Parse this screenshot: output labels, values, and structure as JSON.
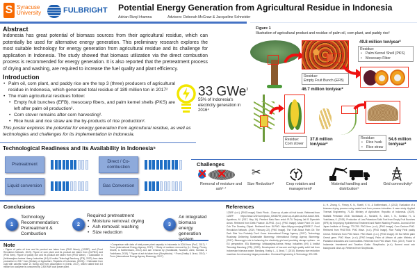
{
  "header": {
    "syracuse": "Syracuse University",
    "syracuse_mark": "S",
    "fulbright": "FULBRIGHT",
    "title": "Potential Energy Generation from Agricultural Residue in Indonesia",
    "author": "Adrian Rizqi Irhamna",
    "advisors": "Advisors: Deborah McGraw & Jacqueline Schneider"
  },
  "abstract": {
    "heading": "Abstract",
    "text": "Indonesia has great potential of biomass sources from their agricultural residue, which can potentially be used for alternative energy generation. This preliminary research explores the most suitable technology for energy generation from agricultural residue and its challenge for application in Indonesia. The study showed that biomass utilization via the direct combustion process is recommended for energy generation. It is also reported that the pretreatment process of drying and washing, are required to increase the fuel quality and plant efficiency."
  },
  "intro": {
    "heading": "Introduction",
    "b1": "Palm oil, corn plant, and paddy rice are the top 3 (three) producers of agricultural residue in Indonesia, which generated total residue of 189 million ton in 2017²",
    "b2": "The main agricultural residues follow:",
    "s1": "Empty fruit bunches (EFB), mesocarp fibers, and palm kernel shells (PKS) are left after palm oil production².",
    "s2": "Corn stover remains after corn harvesting².",
    "s3": "Rice husk and rice straw are the by-products of rice production².",
    "closing": "This poster explores the potential for energy generation from agricultural residue, as well as technologies and challenges for its implementation in Indonesia."
  },
  "stat": {
    "value": "33 GWe",
    "sup": "3",
    "text": "55% of Indonesia's electricity generation in 2016⁴",
    "icon": "lightbulb-icon",
    "color": "#f2e600"
  },
  "figure": {
    "title": "Figure 1",
    "caption": "Illustration of agricultural product and residue of palm oil, corn plant, and paddy rice¹",
    "pks_tons": "49.8 million ton/year²",
    "pks_label": "Residue:",
    "pks_items": [
      "Palm Kernel Shell (PKS)",
      "Mesocarp Fiber"
    ],
    "efb_label": "Residue:",
    "efb_item": "Empty Fruit Bunch (EFB)",
    "efb_tons": "46.7 million ton/year²",
    "corn_label": "Residue:",
    "corn_item": "Corn stover",
    "corn_tons": "37.8 million ton/year²",
    "rice_label": "Residue:",
    "rice_items": [
      "Rice husk",
      "Rice straw"
    ],
    "rice_tons": "54.6 million ton/year²"
  },
  "tech": {
    "heading": "Technological Readiness and its Availability in Indonesia⁵",
    "items": [
      {
        "label": "Pretreatment",
        "level": 7,
        "max": 10
      },
      {
        "label": "Liquid conversion",
        "level": 5,
        "max": 10
      },
      {
        "label": "Direct / Co-combustion",
        "level": 9,
        "max": 10
      },
      {
        "label": "Gas Conversion",
        "level": 4,
        "max": 10
      }
    ]
  },
  "challenges": {
    "heading": "Challenges",
    "items": [
      "Removal of moisture and ash⁶·⁷",
      "Size Reduction⁸",
      "Crop rotation and management⁵",
      "Material handling and distribution⁵",
      "Grid connectivity⁹"
    ]
  },
  "conclusions": {
    "heading": "Conclusions",
    "c1": {
      "n": "1",
      "text": "Technology Recommendation: Pretreatment & Combustion"
    },
    "c2": {
      "n": "2",
      "title": "Required pretreatment",
      "items": [
        "Moisture removal: drying",
        "Ash removal: washing",
        "Size reduction"
      ]
    },
    "c3": {
      "n": "3",
      "text": "An integrated biomass energy generation system"
    }
  },
  "note": {
    "heading": "Note",
    "col1": "¹ Figure of palm oil tree and its product are taken from (PNG Wave), (123RF), and (Food Revolution Network, 2019). Figure of corn plant and its product are taken from (DLPNG) and (PNG Item). Figure of paddy rice and its product are taken from (PNG Wave). ² Calculation in (Ishikawajima-harima Heavy Industries (IHI) & Institut Teknologi Bandung (ITB), 2020) from data production in 2017 from (Ministry of Agriculture, Republic of Indonesia, (2019)). ³ Estimated from coal with calorific value 21 MJ/kg and from assumption in (Denk, 2017), which stated that 4.8 million ton coal/year is consumed by 2,800 MW coal power plant.",
    "col2": "⁴ Comparison with data of total power plant capacity in Indonesia in 2016 from (PwC, 2017). ⁵ From (International Energy Agency, 2017). ⁶ Study of moisture removal by (Li, Zhang, Finney, Sharifi, & Swithenbank, 2012) and ash removal by (Nurdiawati, Novianti, Zaini, Sumida, & Yoshikawa, 2015). ⁷ Figure of ash is taken from (Storyblocks). ⁸ From (Kratky & Jirout, 2010). ⁹ From (International Energy Agency Bioenergy, 2017)."
  },
  "references": {
    "heading": "References",
    "col1": "123RF. (n.d.). [PNG Image]. Stock Photo - Close up of palm oil fruit bunch. Retrieved from 123RF: https://www.123rf.com/photo_40048759_close-up-of-palm-oil-fruit-bunch.html. Agustinus, M. (2017, May 16). Pemberi Batu Bara untuk PLTU Tanjung Jati B Diperoleh Aman. Retrieved from Detik Finance. DLPNG. (n.d.). [PNG Image]. Maize Plant On Corn Cob The Drawing Clipart. Retrieved from DLPNG: https://dlpng.com/png/5389317. Food Revolution Network. (2019, February 22). [PNG Image]. The Truth About Palm Oil: The Dark Side You Probably Don't Know. International Energy Agency. (2017). Technology Roadmap Delivering Sustainable Bioenergy. International Energy Agency Bioenergy. (2017). Bioenergy's role in balancing the electricity grid and providing storage options - an EU perspective. IEA Bioenergy. Ishikawajima-harima Heavy Industries (IHI) & Institut Teknologi Bandung (ITB). (2020). Development of low-ash and high quality solid fuel from Indonesian biomass waste. Bandung. Kratky, L., & Jirout, T. (2010). Biomass size reduction machines for enhancing biogas production. Chemical Engineering & Technology, 391-399.",
    "col2": "Li, H., Zhang, X., Finney, K. N., Sharifi, V. N., & Swithenbank, J. (2012). Evaluation of a biomass drying process using waste heat from process industries: A case study. Applied Thermal Engineering, 71-80. Ministry of Agriculture, Republic of Indonesia. (2019). Statistik Pertanian 2018. Nurdiawati, A., Novianti, S., Zaini, I. N., Sumida, H., & Yoshikawa, K. (2015). Production of Low-Potassium Solid Fuel from Empty Fruit Bunches (EFB) by Employing Hydrothermal Treatment and Water Washing Process. Journal of the Japan Institute of Energy, 775-780. PNG Item. (n.d.). [PNG Image]. Corn Cartoon PNG. Retrieved from PNGITEM. PNG Wave. (n.d.). [PNG Image]. Rice Paddy Field paddy Cereal. Retrieved from PNG Wave. PNG Wave. (n.d.). [PNG Image]. Oil Nut White palm Cereal germ. PNG Wave. (n.d.). [PNG Image]. Palm oil African oil palm Ministry of Plantation Industries and Commodities. Retrieved from PNG Wave. PwC. (2017). Power in Indonesia: Investment and Taxation Guide. Storyblocks. (n.d.). Burned wood ash background close-up. Retrieved from Storyblocks."
  },
  "colors": {
    "accent": "#4472c4",
    "syracuse": "#f76900",
    "fulbright": "#1f5fb0",
    "bar_on": "#1f6fc5",
    "highlight": "#e21"
  }
}
